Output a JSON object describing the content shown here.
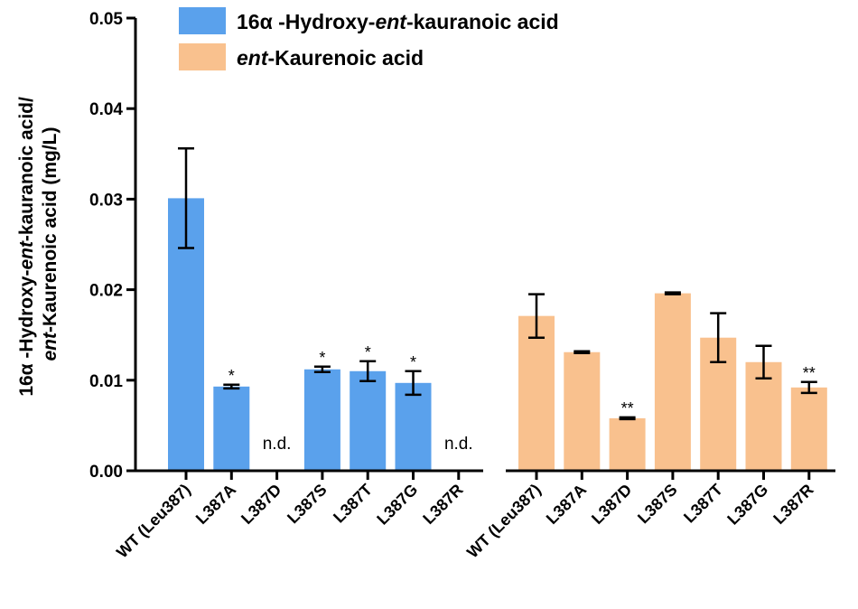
{
  "chart_data": {
    "type": "bar",
    "ylabel_line1": "16α -Hydroxy-ent-kauranoic acid/",
    "ylabel_line2": "ent-Kaurenoic acid (mg/L)",
    "ylim": [
      0,
      0.05
    ],
    "yticks": [
      "0.00",
      "0.01",
      "0.02",
      "0.03",
      "0.04",
      "0.05"
    ],
    "ytick_values": [
      0,
      0.01,
      0.02,
      0.03,
      0.04,
      0.05
    ],
    "legend_position": "top-left",
    "groups": [
      {
        "color": "#5aa1ec",
        "categories": [
          "WT (Leu387)",
          "L387A",
          "L387D",
          "L387S",
          "L387T",
          "L387G",
          "L387R"
        ],
        "values": [
          0.0301,
          0.0093,
          null,
          0.0112,
          0.011,
          0.0097,
          null
        ],
        "errors": [
          0.0055,
          0.0002,
          null,
          0.0003,
          0.0011,
          0.0013,
          null
        ],
        "annotations": [
          "",
          "*",
          "n.d.",
          "*",
          "*",
          "*",
          "n.d."
        ]
      },
      {
        "color": "#f9c18e",
        "categories": [
          "WT (Leu387)",
          "L387A",
          "L387D",
          "L387S",
          "L387T",
          "L387G",
          "L387R"
        ],
        "values": [
          0.0171,
          0.0131,
          0.0058,
          0.0196,
          0.0147,
          0.012,
          0.0092
        ],
        "errors": [
          0.0024,
          0.0001,
          0.0001,
          0.0001,
          0.0027,
          0.0018,
          0.0006
        ],
        "annotations": [
          "",
          "",
          "**",
          "",
          "",
          "",
          "**"
        ]
      }
    ],
    "legend": [
      {
        "pre": "16α -Hydroxy-",
        "italic": "ent",
        "post": "-kauranoic acid",
        "color": "#5aa1ec"
      },
      {
        "pre": "",
        "italic": "ent",
        "post": "-Kaurenoic acid",
        "color": "#f9c18e"
      }
    ]
  }
}
